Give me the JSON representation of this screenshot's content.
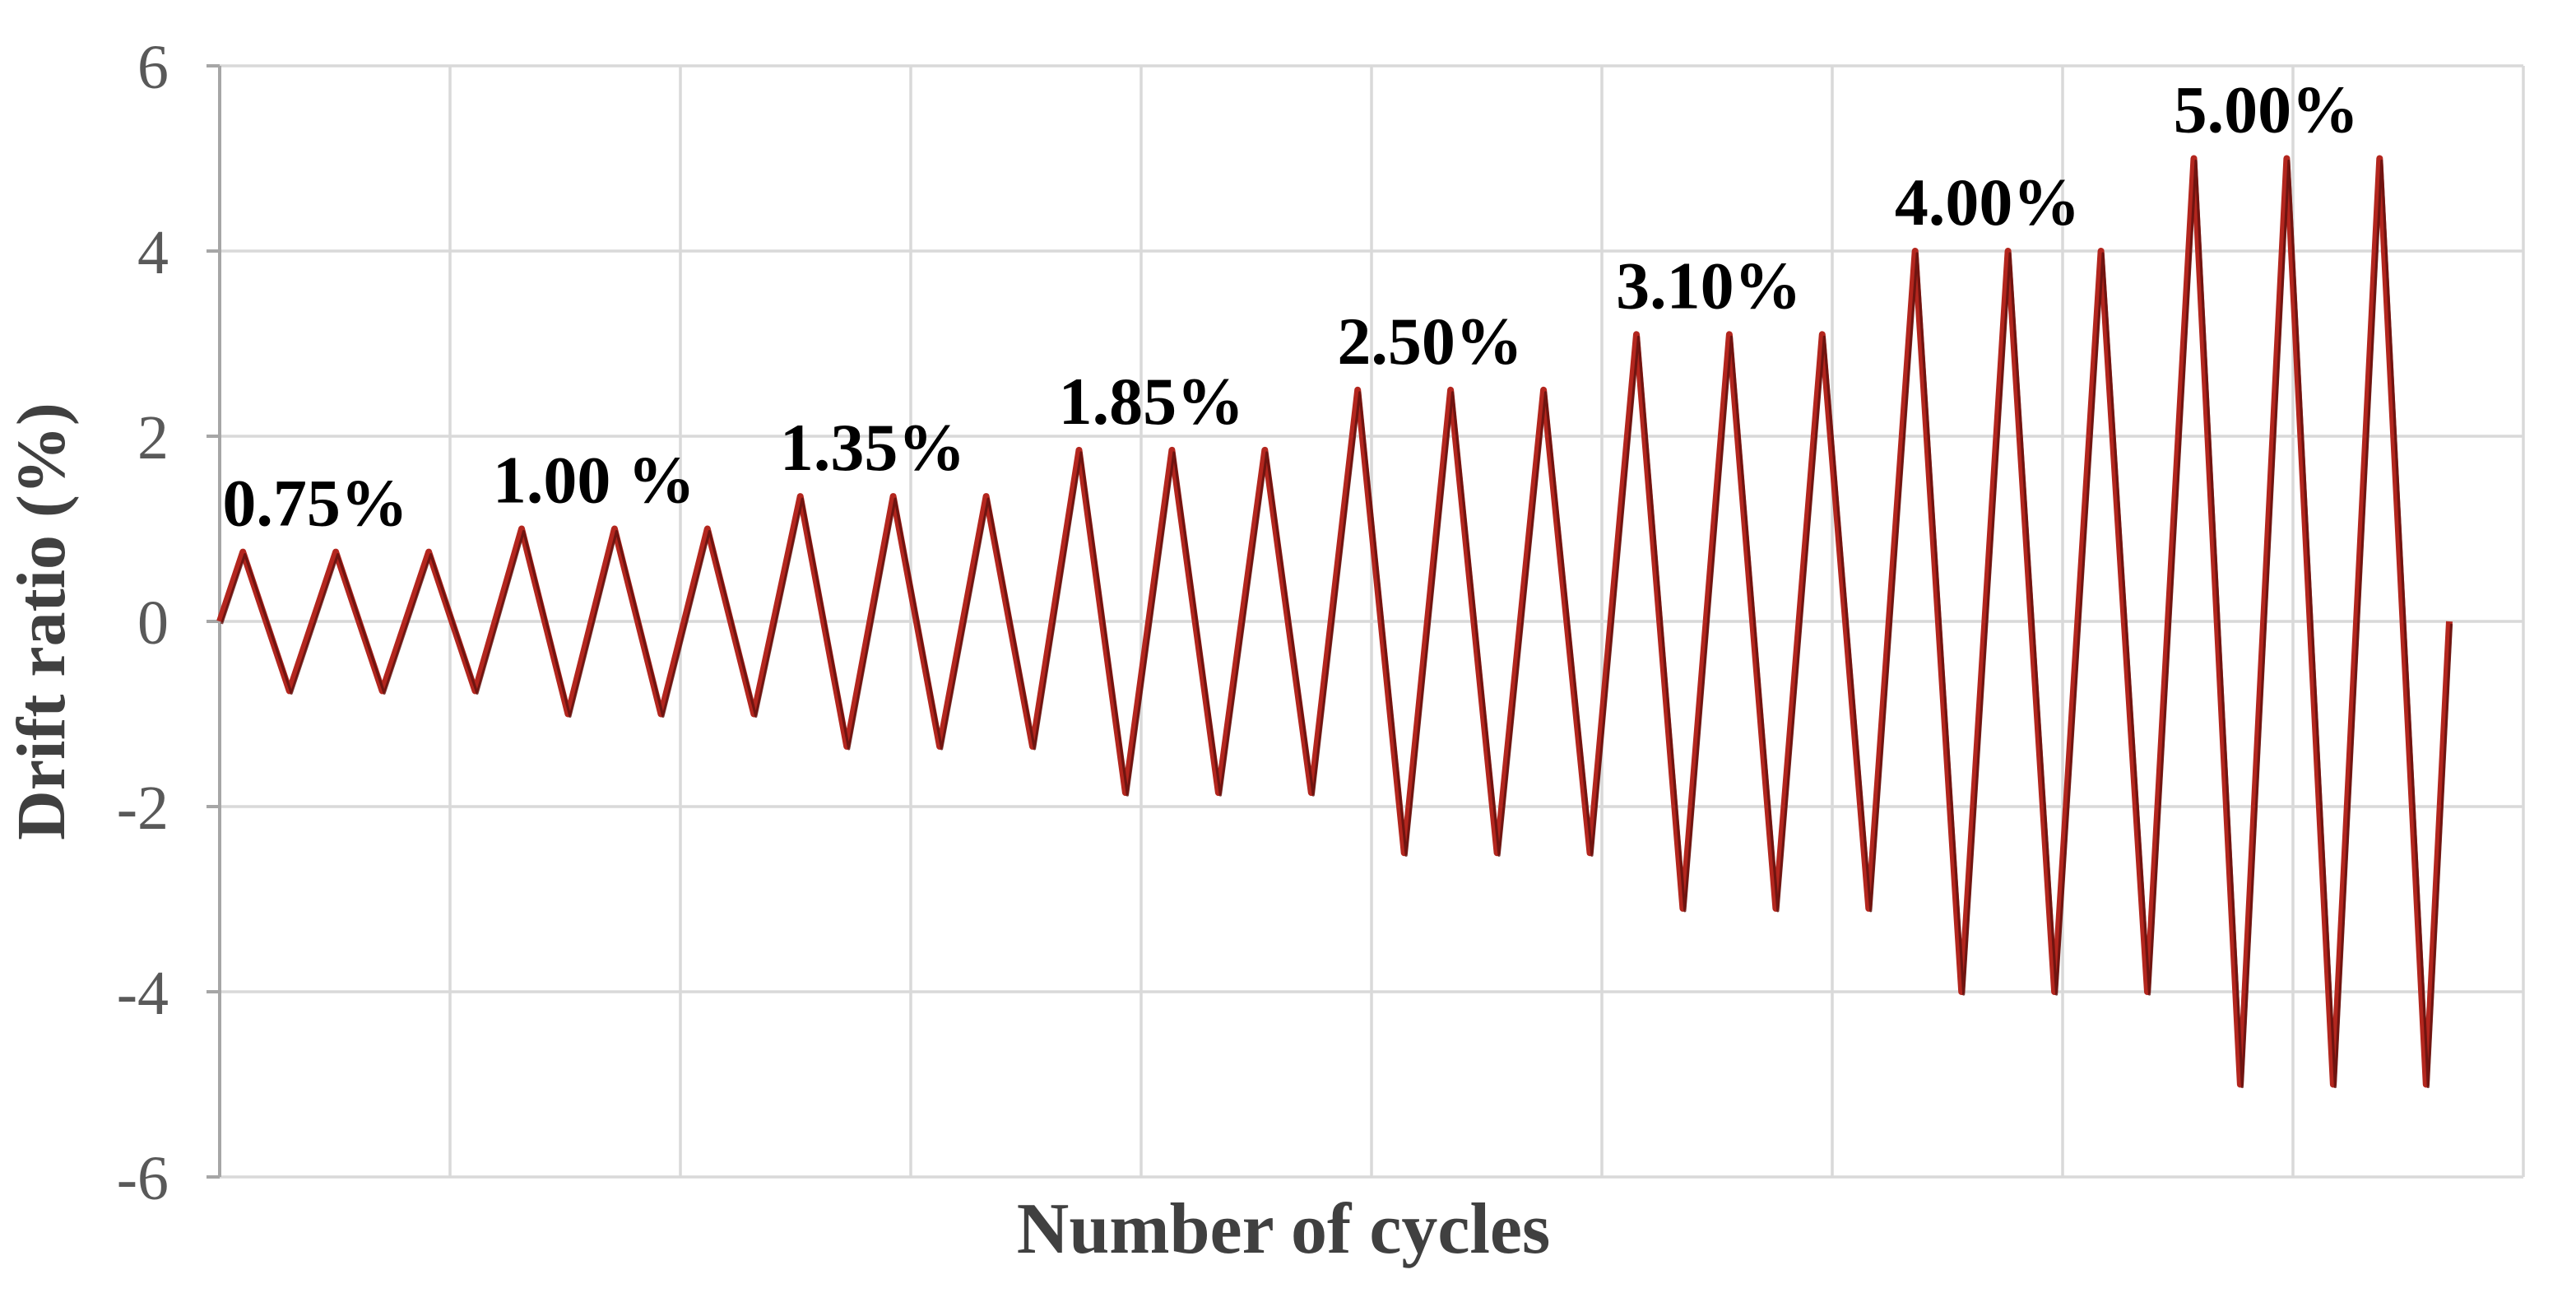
{
  "chart_data": {
    "type": "line",
    "title": "",
    "xlabel": "Number of cycles",
    "ylabel": "Drift ratio (%)",
    "ylim": [
      -6,
      6
    ],
    "yticks": [
      6,
      4,
      2,
      0,
      -2,
      -4,
      -6
    ],
    "xticklabels": [],
    "grid": true,
    "legend": false,
    "x_gridline_intervals": 10,
    "cycles_per_level": 3,
    "drift_levels_percent": [
      0.75,
      1.0,
      1.35,
      1.85,
      2.5,
      3.1,
      4.0,
      5.0
    ],
    "amplitude_sequence": [
      0.75,
      0.75,
      0.75,
      1.0,
      1.0,
      1.0,
      1.35,
      1.35,
      1.35,
      1.85,
      1.85,
      1.85,
      2.5,
      2.5,
      2.5,
      3.1,
      3.1,
      3.1,
      4.0,
      4.0,
      4.0,
      5.0,
      5.0,
      5.0
    ],
    "waveform": "triangle",
    "start_value": 0,
    "end_value": 0,
    "level_labels": [
      {
        "text": "0.75%",
        "level": 0.75
      },
      {
        "text": "1.00 %",
        "level": 1.0
      },
      {
        "text": "1.35%",
        "level": 1.35
      },
      {
        "text": "1.85%",
        "level": 1.85
      },
      {
        "text": "2.50%",
        "level": 2.5
      },
      {
        "text": "3.10%",
        "level": 3.1
      },
      {
        "text": "4.00%",
        "level": 4.0
      },
      {
        "text": "5.00%",
        "level": 5.0
      }
    ],
    "colors": {
      "line": "#b3261e",
      "line_core": "#5f100c",
      "gridline": "#d9d9d9",
      "axis_line": "#a6a6a6",
      "tick_text": "#595959",
      "axis_title_text": "#404040",
      "level_label_text": "#000000",
      "background": "#ffffff"
    }
  }
}
